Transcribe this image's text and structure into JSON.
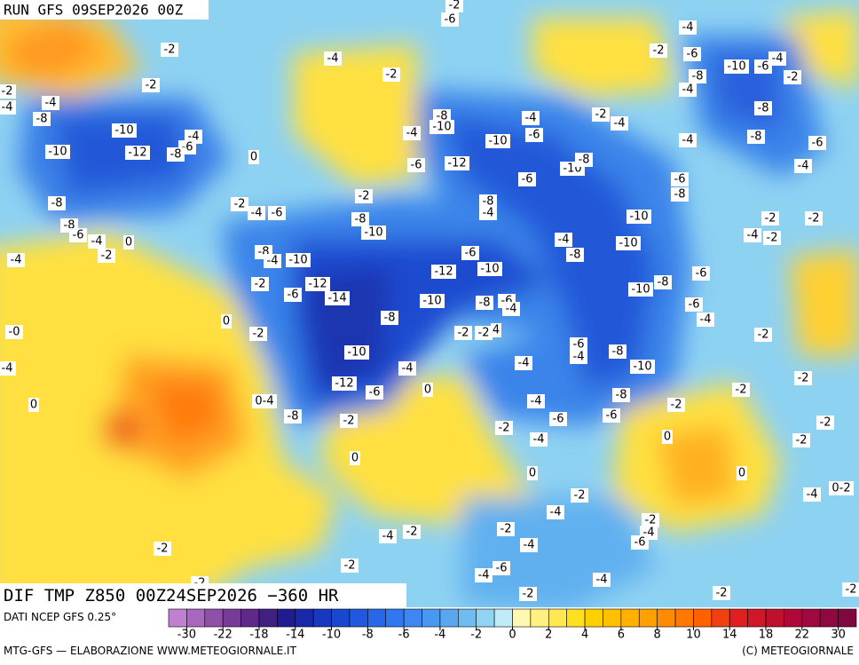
{
  "header": {
    "run": "RUN GFS 09SEP2026 00Z",
    "field": "DIF TMP Z850 00Z24SEP2026 −360 HR"
  },
  "footer": {
    "source": "DATI NCEP GFS 0.25°",
    "credit": "MTG-GFS — ELABORAZIONE WWW.METEOGIORNALE.IT",
    "copyright": "(C) METEOGIORNALE"
  },
  "colorbar": {
    "ticks": [
      -30,
      -22,
      -18,
      -14,
      -10,
      -8,
      -6,
      -4,
      -2,
      0,
      2,
      4,
      6,
      8,
      10,
      14,
      18,
      22,
      30
    ],
    "colors": [
      "#c080d0",
      "#a868c0",
      "#9050a8",
      "#783c98",
      "#602888",
      "#402080",
      "#201c90",
      "#1828a8",
      "#1838c0",
      "#1848d0",
      "#2058e0",
      "#2868e8",
      "#3078f0",
      "#3c88f0",
      "#4898f0",
      "#58a8f0",
      "#70bcf0",
      "#90d4f4",
      "#c0ecf8",
      "#fff8b0",
      "#fff080",
      "#ffe850",
      "#ffe020",
      "#ffd000",
      "#ffc000",
      "#ffb000",
      "#ffa000",
      "#ff8c00",
      "#ff7800",
      "#ff6000",
      "#f04010",
      "#e02020",
      "#d01828",
      "#c01030",
      "#b00838",
      "#a00840",
      "#900840",
      "#800840"
    ]
  },
  "contour_labels": [
    "-2",
    "-6",
    "-4",
    "-2",
    "-6",
    "-10",
    "-6",
    "-4",
    "-2",
    "-8",
    "-4",
    "-2",
    "-4",
    "-2",
    "-2",
    "-2",
    "-4",
    "-4",
    "-8",
    "-8",
    "-10",
    "-4",
    "-2",
    "-4",
    "-6",
    "-10",
    "-4",
    "-10",
    "-4",
    "-6",
    "-10",
    "-12",
    "-8",
    "0",
    "-8",
    "-8",
    "-6",
    "-4",
    "-4",
    "-6",
    "-12",
    "-10",
    "-8",
    "-6",
    "-6",
    "-8",
    "-2",
    "-8",
    "-4",
    "-2",
    "-4",
    "-6",
    "-8",
    "-10",
    "-2",
    "-2",
    "-8",
    "-10",
    "-8",
    "-6",
    "-4",
    "0",
    "-2",
    "-4",
    "-4",
    "-10",
    "-4",
    "-2",
    "-8",
    "-4",
    "-10",
    "-6",
    "-8",
    "-12",
    "-10",
    "-2",
    "-12",
    "-6",
    "-14",
    "-10",
    "-8",
    "-6",
    "-4",
    "-6",
    "-10",
    "-8",
    "-6",
    "-4",
    "0",
    "-8",
    "-0",
    "-2",
    "-2",
    "-2",
    "4",
    "-2",
    "-6",
    "-4",
    "-8",
    "-10",
    "-4",
    "-10",
    "-4",
    "-4",
    "-2",
    "-12",
    "-6",
    "0",
    "-2",
    "0",
    "0-4",
    "-4",
    "-8",
    "-2",
    "-8",
    "-2",
    "-6",
    "-6",
    "-2",
    "-4",
    "0",
    "-2",
    "-2",
    "0",
    "0",
    "0",
    "-2",
    "-4",
    "0-2",
    "-4",
    "-2",
    "-4",
    "-6",
    "-2",
    "-4",
    "-2",
    "-4",
    "-2",
    "-2",
    "-4",
    "-6",
    "-4",
    "-2",
    "-2",
    "-2",
    "-2"
  ]
}
